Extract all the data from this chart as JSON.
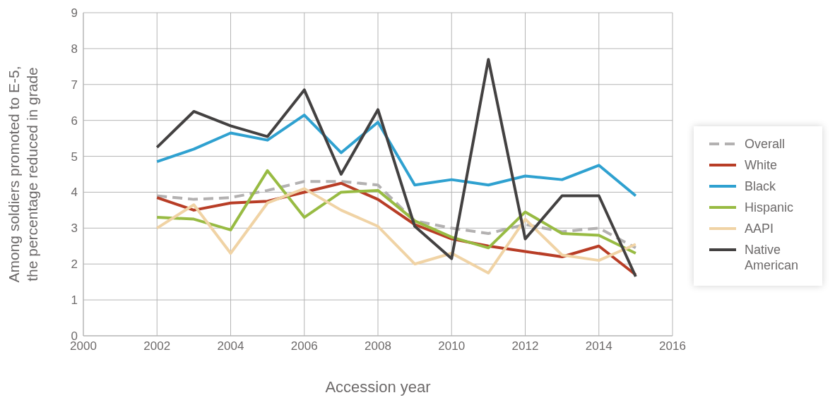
{
  "chart_data": {
    "type": "line",
    "xlabel": "Accession year",
    "ylabel": "Among soldiers promoted to E-5, the percentage reduced in grade",
    "x": [
      2002,
      2003,
      2004,
      2005,
      2006,
      2007,
      2008,
      2009,
      2010,
      2011,
      2012,
      2013,
      2014,
      2015
    ],
    "xlim": [
      2000,
      2016
    ],
    "xticks": [
      2000,
      2002,
      2004,
      2006,
      2008,
      2010,
      2012,
      2014,
      2016
    ],
    "ylim": [
      0,
      9
    ],
    "yticks": [
      0,
      1,
      2,
      3,
      4,
      5,
      6,
      7,
      8,
      9
    ],
    "grid": true,
    "legend": "right",
    "marker": "none",
    "series": [
      {
        "name": "Overall",
        "color": "#b3b1b1",
        "line_style": "dashed",
        "values": [
          3.9,
          3.8,
          3.85,
          4.05,
          4.3,
          4.3,
          4.2,
          3.2,
          3.0,
          2.85,
          3.1,
          2.9,
          3.0,
          2.45
        ]
      },
      {
        "name": "White",
        "color": "#b83d26",
        "values": [
          3.85,
          3.5,
          3.7,
          3.75,
          4.0,
          4.25,
          3.8,
          3.1,
          2.7,
          2.5,
          2.35,
          2.2,
          2.5,
          1.7
        ]
      },
      {
        "name": "Black",
        "color": "#2fa1d0",
        "values": [
          4.85,
          5.2,
          5.65,
          5.45,
          6.15,
          5.1,
          5.95,
          4.2,
          4.35,
          4.2,
          4.45,
          4.35,
          4.75,
          3.9
        ]
      },
      {
        "name": "Hispanic",
        "color": "#98bb43",
        "values": [
          3.3,
          3.25,
          2.95,
          4.6,
          3.3,
          4.0,
          4.05,
          3.2,
          2.75,
          2.45,
          3.45,
          2.85,
          2.8,
          2.3
        ]
      },
      {
        "name": "AAPI",
        "color": "#f0d3a5",
        "values": [
          3.0,
          3.65,
          2.3,
          3.7,
          4.1,
          3.5,
          3.05,
          2.0,
          2.3,
          1.75,
          3.25,
          2.25,
          2.1,
          2.55
        ]
      },
      {
        "name": "Native American",
        "color": "#434141",
        "values": [
          5.25,
          6.25,
          5.85,
          5.55,
          6.85,
          4.5,
          6.3,
          3.05,
          2.15,
          7.7,
          2.7,
          3.9,
          3.9,
          1.65
        ]
      }
    ]
  }
}
